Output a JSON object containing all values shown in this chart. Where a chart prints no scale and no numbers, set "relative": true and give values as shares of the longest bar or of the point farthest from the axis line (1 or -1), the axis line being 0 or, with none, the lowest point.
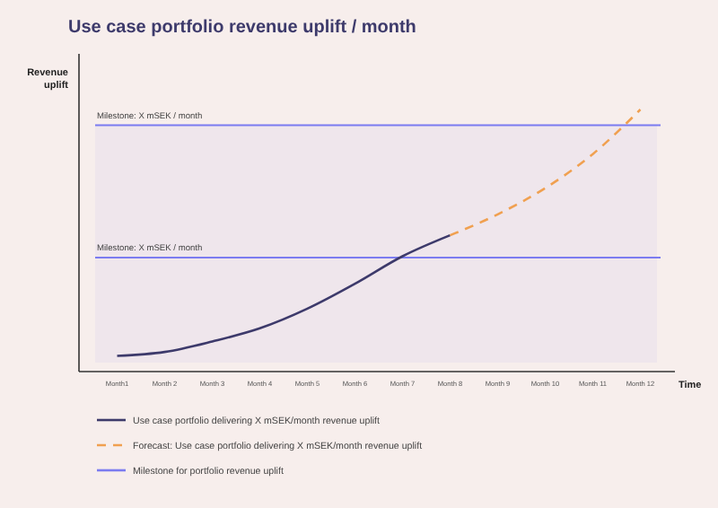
{
  "chart_data": {
    "type": "line",
    "title": "Use case portfolio revenue uplift / month",
    "xlabel": "Time",
    "ylabel": "Revenue uplift",
    "relative": true,
    "categories": [
      "Month1",
      "Month 2",
      "Month 3",
      "Month 4",
      "Month 5",
      "Month 6",
      "Month 7",
      "Month 8",
      "Month 9",
      "Month 10",
      "Month 11",
      "Month 12"
    ],
    "series": [
      {
        "name": "Use case portfolio delivering X mSEK/month revenue uplift",
        "color": "#3d3a6b",
        "values": [
          0.06,
          0.075,
          0.115,
          0.165,
          0.24,
          0.335,
          0.44,
          0.52,
          null,
          null,
          null,
          null
        ]
      },
      {
        "name": "Forecast: Use case portfolio delivering X mSEK/month revenue uplift",
        "color": "#f0a050",
        "line_style": "dashed",
        "values": [
          null,
          null,
          null,
          null,
          null,
          null,
          null,
          0.52,
          0.6,
          0.7,
          0.83,
          1
        ]
      }
    ],
    "ref_lines": [
      {
        "axis": "y",
        "value": 0.94,
        "label": "Milestone: X mSEK / month",
        "color": "#7b7bf0"
      },
      {
        "axis": "y",
        "value": 0.435,
        "label": "Milestone: X mSEK / month",
        "color": "#7b7bf0"
      }
    ],
    "annotations": [
      "Milestone for portfolio revenue uplift"
    ],
    "legend": "bottom"
  }
}
